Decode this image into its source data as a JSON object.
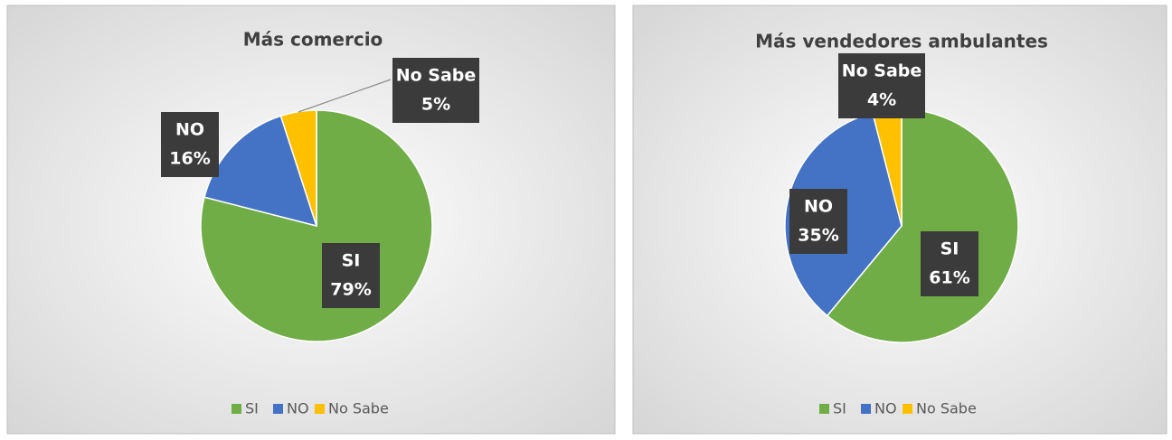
{
  "chart_data": [
    {
      "type": "pie",
      "title": "Más comercio",
      "categories": [
        "SI",
        "NO",
        "No Sabe"
      ],
      "values": [
        79,
        16,
        5
      ],
      "value_labels": [
        "79%",
        "16%",
        "5%"
      ],
      "colors": [
        "#70ad47",
        "#4472c4",
        "#ffc000"
      ],
      "legend": "bottom"
    },
    {
      "type": "pie",
      "title": "Más vendedores ambulantes",
      "categories": [
        "SI",
        "NO",
        "No Sabe"
      ],
      "values": [
        61,
        35,
        4
      ],
      "value_labels": [
        "61%",
        "35%",
        "4%"
      ],
      "colors": [
        "#70ad47",
        "#4472c4",
        "#ffc000"
      ],
      "legend": "bottom"
    }
  ]
}
